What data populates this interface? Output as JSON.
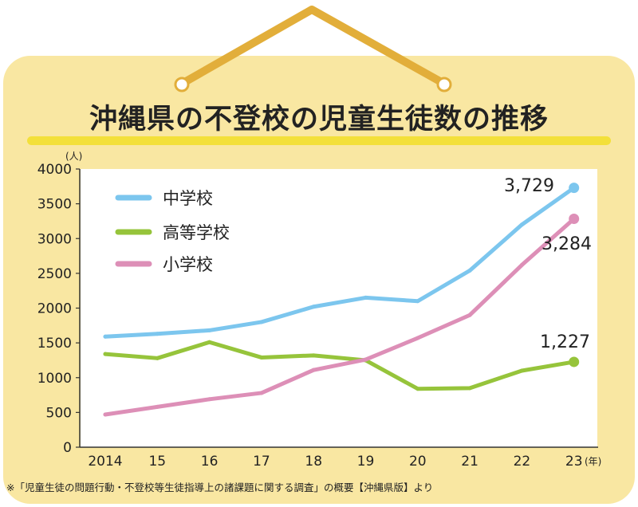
{
  "title": "沖縄県の不登校の児童生徒数の推移",
  "footnote": "※「児童生徒の問題行動・不登校等生徒指導上の諸課題に関する調査」の概要【沖縄県版】より",
  "colors": {
    "board": "#f9e7a2",
    "hanger": "#e2ae3a",
    "underline": "#f3e03a",
    "middle_school": "#7cc6ee",
    "high_school": "#96c43b",
    "elementary": "#dd8fb7"
  },
  "chart_data": {
    "type": "line",
    "title": "沖縄県の不登校の児童生徒数の推移",
    "ylabel": "(人)",
    "xlabel": "(年)",
    "ylim": [
      0,
      4000
    ],
    "yticks": [
      0,
      500,
      1000,
      1500,
      2000,
      2500,
      3000,
      3500,
      4000
    ],
    "categories": [
      "2014",
      "15",
      "16",
      "17",
      "18",
      "19",
      "20",
      "21",
      "22",
      "23"
    ],
    "grid": false,
    "legend_position": "top-left",
    "series": [
      {
        "name": "中学校",
        "color": "#7cc6ee",
        "end_label": "3,729",
        "values": [
          1590,
          1630,
          1680,
          1800,
          2020,
          2150,
          2100,
          2540,
          3200,
          3729
        ]
      },
      {
        "name": "高等学校",
        "color": "#96c43b",
        "end_label": "1,227",
        "values": [
          1340,
          1280,
          1510,
          1290,
          1320,
          1250,
          840,
          850,
          1100,
          1227
        ]
      },
      {
        "name": "小学校",
        "color": "#dd8fb7",
        "end_label": "3,284",
        "values": [
          470,
          580,
          690,
          780,
          1110,
          1260,
          1570,
          1900,
          2620,
          3284
        ]
      }
    ]
  }
}
